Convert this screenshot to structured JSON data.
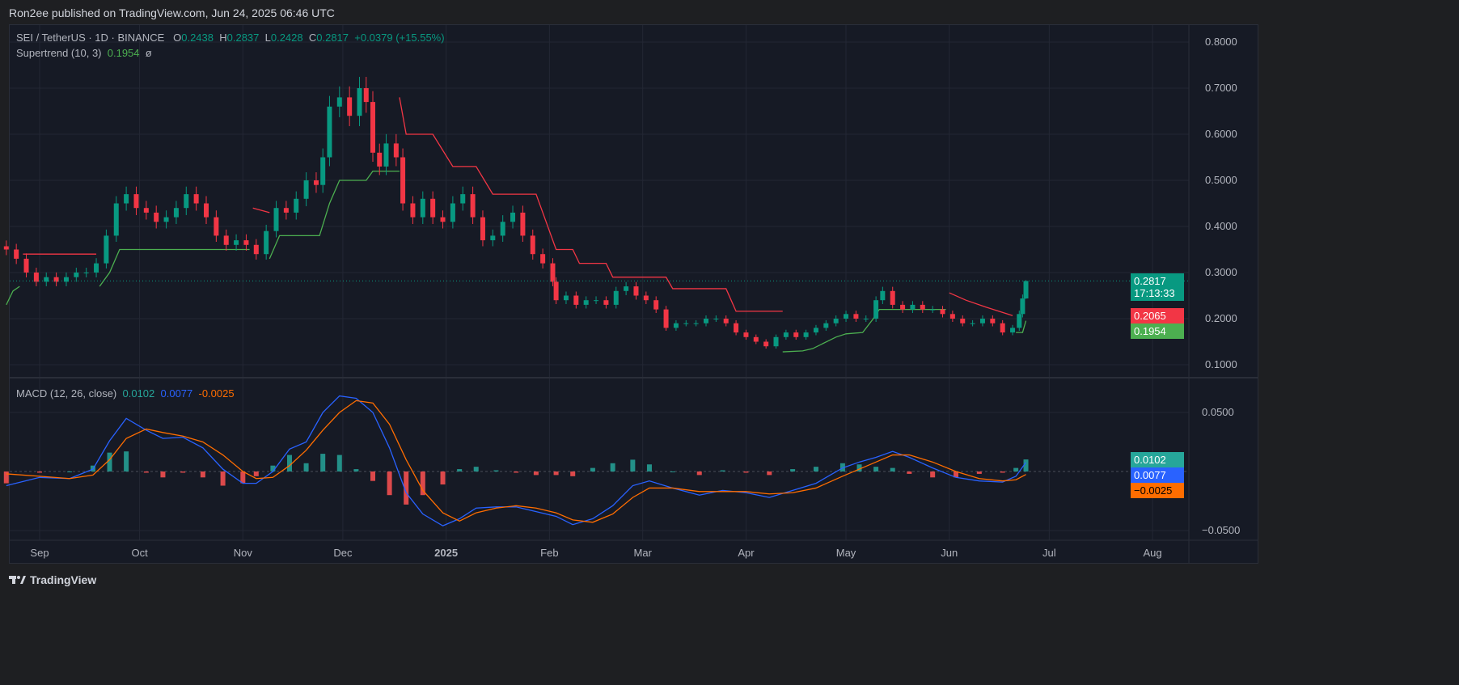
{
  "published": "Ron2ee published on TradingView.com, Jun 24, 2025 06:46 UTC",
  "legend": {
    "symbol": "SEI / TetherUS · 1D · BINANCE",
    "o_label": "O",
    "o": "0.2438",
    "h_label": "H",
    "h": "0.2837",
    "l_label": "L",
    "l": "0.2428",
    "c_label": "C",
    "c": "0.2817",
    "change": "+0.0379 (+15.55%)",
    "supertrend_label": "Supertrend (10, 3)",
    "supertrend_value": "0.1954",
    "supertrend_extra": "ø",
    "macd_label": "MACD (12, 26, close)",
    "macd_hist": "0.0102",
    "macd_line": "0.0077",
    "macd_signal": "-0.0025"
  },
  "tags": {
    "price": "0.2817",
    "countdown": "17:13:33",
    "st_red": "0.2065",
    "st_green": "0.1954",
    "macd_hist": "0.0102",
    "macd_line": "0.0077",
    "macd_signal": "−0.0025"
  },
  "footer": {
    "brand": "TradingView",
    "logo_icon": "tradingview-logo-icon"
  },
  "colors": {
    "up": "#089981",
    "down": "#f23645",
    "st_up": "#4caf50",
    "st_down": "#f23645",
    "macd": "#2962ff",
    "signal": "#ff6d00",
    "hist_up": "#26a69a",
    "hist_down": "#ff5252"
  },
  "chart_data": [
    {
      "type": "candlestick",
      "title": "SEI / TetherUS · 1D · BINANCE",
      "y_ticks": [
        "0.8000",
        "0.7000",
        "0.6000",
        "0.5000",
        "0.4000",
        "0.3000",
        "0.2000",
        "0.1000"
      ],
      "ylim": [
        0.1,
        0.8
      ],
      "x_ticks": [
        {
          "label": "Sep",
          "date": "2024-09-01"
        },
        {
          "label": "Oct",
          "date": "2024-10-01"
        },
        {
          "label": "Nov",
          "date": "2024-11-01"
        },
        {
          "label": "Dec",
          "date": "2024-12-01"
        },
        {
          "label": "2025",
          "date": "2025-01-01",
          "bold": true
        },
        {
          "label": "Feb",
          "date": "2025-02-01"
        },
        {
          "label": "Mar",
          "date": "2025-03-01"
        },
        {
          "label": "Apr",
          "date": "2025-04-01"
        },
        {
          "label": "May",
          "date": "2025-05-01"
        },
        {
          "label": "Jun",
          "date": "2025-06-01"
        },
        {
          "label": "Jul",
          "date": "2025-07-01"
        },
        {
          "label": "Aug",
          "date": "2025-08-01"
        }
      ],
      "grid": true,
      "closes": [
        [
          "2024-08-22",
          0.35
        ],
        [
          "2024-08-25",
          0.33
        ],
        [
          "2024-08-28",
          0.3
        ],
        [
          "2024-08-31",
          0.28
        ],
        [
          "2024-09-03",
          0.29
        ],
        [
          "2024-09-06",
          0.28
        ],
        [
          "2024-09-09",
          0.29
        ],
        [
          "2024-09-12",
          0.3
        ],
        [
          "2024-09-15",
          0.3
        ],
        [
          "2024-09-18",
          0.32
        ],
        [
          "2024-09-21",
          0.38
        ],
        [
          "2024-09-24",
          0.45
        ],
        [
          "2024-09-27",
          0.47
        ],
        [
          "2024-09-30",
          0.44
        ],
        [
          "2024-10-03",
          0.43
        ],
        [
          "2024-10-06",
          0.41
        ],
        [
          "2024-10-09",
          0.42
        ],
        [
          "2024-10-12",
          0.44
        ],
        [
          "2024-10-15",
          0.47
        ],
        [
          "2024-10-18",
          0.45
        ],
        [
          "2024-10-21",
          0.42
        ],
        [
          "2024-10-24",
          0.38
        ],
        [
          "2024-10-27",
          0.36
        ],
        [
          "2024-10-30",
          0.37
        ],
        [
          "2024-11-02",
          0.36
        ],
        [
          "2024-11-05",
          0.34
        ],
        [
          "2024-11-08",
          0.39
        ],
        [
          "2024-11-11",
          0.44
        ],
        [
          "2024-11-14",
          0.43
        ],
        [
          "2024-11-17",
          0.46
        ],
        [
          "2024-11-20",
          0.5
        ],
        [
          "2024-11-23",
          0.49
        ],
        [
          "2024-11-25",
          0.55
        ],
        [
          "2024-11-27",
          0.66
        ],
        [
          "2024-11-30",
          0.68
        ],
        [
          "2024-12-03",
          0.64
        ],
        [
          "2024-12-06",
          0.7
        ],
        [
          "2024-12-08",
          0.67
        ],
        [
          "2024-12-10",
          0.56
        ],
        [
          "2024-12-12",
          0.53
        ],
        [
          "2024-12-14",
          0.58
        ],
        [
          "2024-12-17",
          0.55
        ],
        [
          "2024-12-19",
          0.45
        ],
        [
          "2024-12-22",
          0.42
        ],
        [
          "2024-12-25",
          0.46
        ],
        [
          "2024-12-28",
          0.42
        ],
        [
          "2024-12-31",
          0.41
        ],
        [
          "2025-01-03",
          0.45
        ],
        [
          "2025-01-06",
          0.47
        ],
        [
          "2025-01-09",
          0.42
        ],
        [
          "2025-01-12",
          0.37
        ],
        [
          "2025-01-15",
          0.38
        ],
        [
          "2025-01-18",
          0.41
        ],
        [
          "2025-01-21",
          0.43
        ],
        [
          "2025-01-24",
          0.38
        ],
        [
          "2025-01-27",
          0.34
        ],
        [
          "2025-01-30",
          0.32
        ],
        [
          "2025-02-02",
          0.28
        ],
        [
          "2025-02-03",
          0.24
        ],
        [
          "2025-02-06",
          0.25
        ],
        [
          "2025-02-09",
          0.23
        ],
        [
          "2025-02-12",
          0.24
        ],
        [
          "2025-02-15",
          0.24
        ],
        [
          "2025-02-18",
          0.23
        ],
        [
          "2025-02-21",
          0.26
        ],
        [
          "2025-02-24",
          0.27
        ],
        [
          "2025-02-27",
          0.25
        ],
        [
          "2025-03-02",
          0.24
        ],
        [
          "2025-03-05",
          0.22
        ],
        [
          "2025-03-08",
          0.18
        ],
        [
          "2025-03-11",
          0.19
        ],
        [
          "2025-03-14",
          0.19
        ],
        [
          "2025-03-17",
          0.19
        ],
        [
          "2025-03-20",
          0.2
        ],
        [
          "2025-03-23",
          0.2
        ],
        [
          "2025-03-26",
          0.19
        ],
        [
          "2025-03-29",
          0.17
        ],
        [
          "2025-04-01",
          0.16
        ],
        [
          "2025-04-04",
          0.15
        ],
        [
          "2025-04-07",
          0.14
        ],
        [
          "2025-04-10",
          0.16
        ],
        [
          "2025-04-13",
          0.17
        ],
        [
          "2025-04-16",
          0.16
        ],
        [
          "2025-04-19",
          0.17
        ],
        [
          "2025-04-22",
          0.18
        ],
        [
          "2025-04-25",
          0.19
        ],
        [
          "2025-04-28",
          0.2
        ],
        [
          "2025-05-01",
          0.21
        ],
        [
          "2025-05-04",
          0.2
        ],
        [
          "2025-05-07",
          0.2
        ],
        [
          "2025-05-10",
          0.24
        ],
        [
          "2025-05-12",
          0.26
        ],
        [
          "2025-05-15",
          0.23
        ],
        [
          "2025-05-18",
          0.22
        ],
        [
          "2025-05-21",
          0.23
        ],
        [
          "2025-05-24",
          0.22
        ],
        [
          "2025-05-27",
          0.22
        ],
        [
          "2025-05-30",
          0.21
        ],
        [
          "2025-06-02",
          0.2
        ],
        [
          "2025-06-05",
          0.19
        ],
        [
          "2025-06-08",
          0.19
        ],
        [
          "2025-06-11",
          0.2
        ],
        [
          "2025-06-14",
          0.19
        ],
        [
          "2025-06-17",
          0.17
        ],
        [
          "2025-06-20",
          0.18
        ],
        [
          "2025-06-22",
          0.21
        ],
        [
          "2025-06-23",
          0.2438
        ],
        [
          "2025-06-24",
          0.2817
        ]
      ],
      "last_candle": {
        "open": 0.2438,
        "high": 0.2837,
        "low": 0.2428,
        "close": 0.2817
      },
      "supertrend": [
        {
          "trend": "up",
          "points": [
            [
              "2024-08-22",
              0.23
            ],
            [
              "2024-08-24",
              0.26
            ],
            [
              "2024-08-26",
              0.27
            ]
          ]
        },
        {
          "trend": "down",
          "points": [
            [
              "2024-08-27",
              0.34
            ],
            [
              "2024-09-18",
              0.34
            ]
          ]
        },
        {
          "trend": "up",
          "points": [
            [
              "2024-09-19",
              0.27
            ],
            [
              "2024-09-22",
              0.3
            ],
            [
              "2024-09-25",
              0.35
            ],
            [
              "2024-11-03",
              0.35
            ]
          ]
        },
        {
          "trend": "down",
          "points": [
            [
              "2024-11-04",
              0.44
            ],
            [
              "2024-11-09",
              0.43
            ]
          ]
        },
        {
          "trend": "up",
          "points": [
            [
              "2024-11-09",
              0.33
            ],
            [
              "2024-11-12",
              0.38
            ],
            [
              "2024-11-24",
              0.38
            ],
            [
              "2024-11-27",
              0.45
            ],
            [
              "2024-11-30",
              0.5
            ],
            [
              "2024-12-08",
              0.5
            ],
            [
              "2024-12-10",
              0.52
            ],
            [
              "2024-12-18",
              0.52
            ]
          ]
        },
        {
          "trend": "down",
          "points": [
            [
              "2024-12-18",
              0.68
            ],
            [
              "2024-12-20",
              0.6
            ],
            [
              "2024-12-28",
              0.6
            ],
            [
              "2025-01-03",
              0.53
            ],
            [
              "2025-01-10",
              0.53
            ],
            [
              "2025-01-15",
              0.47
            ],
            [
              "2025-01-28",
              0.47
            ],
            [
              "2025-02-03",
              0.35
            ],
            [
              "2025-02-08",
              0.35
            ],
            [
              "2025-02-10",
              0.32
            ],
            [
              "2025-02-18",
              0.32
            ],
            [
              "2025-02-20",
              0.29
            ],
            [
              "2025-03-08",
              0.29
            ],
            [
              "2025-03-10",
              0.265
            ],
            [
              "2025-03-26",
              0.265
            ],
            [
              "2025-03-29",
              0.216
            ],
            [
              "2025-04-12",
              0.216
            ]
          ]
        },
        {
          "trend": "up",
          "points": [
            [
              "2025-04-12",
              0.128
            ],
            [
              "2025-04-18",
              0.13
            ],
            [
              "2025-04-21",
              0.135
            ],
            [
              "2025-04-28",
              0.16
            ],
            [
              "2025-05-01",
              0.167
            ],
            [
              "2025-05-06",
              0.17
            ],
            [
              "2025-05-09",
              0.198
            ],
            [
              "2025-05-11",
              0.22
            ],
            [
              "2025-05-31",
              0.22
            ]
          ]
        },
        {
          "trend": "down",
          "points": [
            [
              "2025-06-01",
              0.256
            ],
            [
              "2025-06-06",
              0.24
            ],
            [
              "2025-06-12",
              0.225
            ],
            [
              "2025-06-20",
              0.2065
            ]
          ]
        },
        {
          "trend": "up",
          "points": [
            [
              "2025-06-21",
              0.17
            ],
            [
              "2025-06-23",
              0.17
            ],
            [
              "2025-06-24",
              0.1954
            ]
          ]
        }
      ]
    },
    {
      "type": "line",
      "title": "MACD (12, 26, close)",
      "y_ticks": [
        "0.0500",
        "−0.0500"
      ],
      "ylim": [
        -0.06,
        0.065
      ],
      "dates": [
        "2024-08-22",
        "2024-09-01",
        "2024-09-10",
        "2024-09-17",
        "2024-09-22",
        "2024-09-27",
        "2024-10-03",
        "2024-10-08",
        "2024-10-14",
        "2024-10-20",
        "2024-10-26",
        "2024-11-01",
        "2024-11-05",
        "2024-11-10",
        "2024-11-15",
        "2024-11-20",
        "2024-11-25",
        "2024-11-30",
        "2024-12-05",
        "2024-12-10",
        "2024-12-15",
        "2024-12-20",
        "2024-12-25",
        "2024-12-31",
        "2025-01-05",
        "2025-01-10",
        "2025-01-16",
        "2025-01-22",
        "2025-01-28",
        "2025-02-03",
        "2025-02-08",
        "2025-02-14",
        "2025-02-20",
        "2025-02-26",
        "2025-03-03",
        "2025-03-10",
        "2025-03-18",
        "2025-03-25",
        "2025-04-01",
        "2025-04-08",
        "2025-04-15",
        "2025-04-22",
        "2025-04-30",
        "2025-05-05",
        "2025-05-10",
        "2025-05-15",
        "2025-05-20",
        "2025-05-27",
        "2025-06-03",
        "2025-06-10",
        "2025-06-17",
        "2025-06-21",
        "2025-06-24"
      ],
      "series": [
        {
          "name": "MACD",
          "values": [
            -0.012,
            -0.005,
            -0.006,
            0.002,
            0.026,
            0.045,
            0.035,
            0.028,
            0.029,
            0.02,
            0.002,
            -0.01,
            -0.01,
            0.0,
            0.019,
            0.025,
            0.05,
            0.064,
            0.062,
            0.05,
            0.02,
            -0.018,
            -0.036,
            -0.046,
            -0.04,
            -0.031,
            -0.03,
            -0.03,
            -0.034,
            -0.038,
            -0.045,
            -0.04,
            -0.029,
            -0.012,
            -0.008,
            -0.014,
            -0.02,
            -0.016,
            -0.018,
            -0.022,
            -0.016,
            -0.01,
            0.003,
            0.008,
            0.012,
            0.017,
            0.012,
            0.003,
            -0.005,
            -0.008,
            -0.009,
            -0.004,
            0.0077
          ]
        },
        {
          "name": "Signal",
          "values": [
            -0.002,
            -0.004,
            -0.006,
            -0.003,
            0.01,
            0.028,
            0.036,
            0.033,
            0.03,
            0.025,
            0.014,
            0.0,
            -0.006,
            -0.005,
            0.005,
            0.018,
            0.035,
            0.05,
            0.06,
            0.058,
            0.04,
            0.01,
            -0.016,
            -0.035,
            -0.042,
            -0.035,
            -0.031,
            -0.029,
            -0.031,
            -0.035,
            -0.041,
            -0.043,
            -0.036,
            -0.022,
            -0.014,
            -0.014,
            -0.017,
            -0.017,
            -0.017,
            -0.019,
            -0.018,
            -0.014,
            -0.004,
            0.002,
            0.008,
            0.014,
            0.014,
            0.008,
            0.0,
            -0.006,
            -0.008,
            -0.007,
            -0.0025
          ]
        }
      ],
      "histogram_last": 0.0102
    }
  ]
}
